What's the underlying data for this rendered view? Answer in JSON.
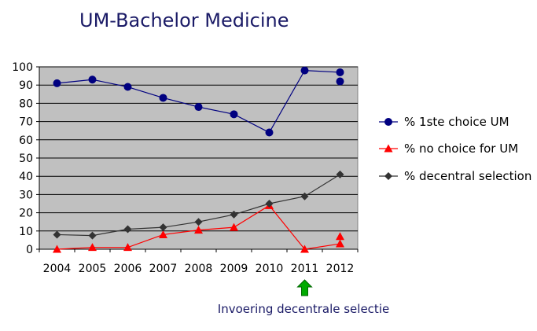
{
  "chart_data": {
    "type": "line",
    "title": "UM-Bachelor Medicine",
    "xlabel": "",
    "ylabel": "",
    "categories": [
      "2004",
      "2005",
      "2006",
      "2007",
      "2008",
      "2009",
      "2010",
      "2011",
      "2012"
    ],
    "ylim": [
      0,
      100
    ],
    "yticks": [
      0,
      10,
      20,
      30,
      40,
      50,
      60,
      70,
      80,
      90,
      100
    ],
    "grid": true,
    "plot_background": "#c0c0c0",
    "legend_position": "right",
    "series": [
      {
        "name": "% 1ste choice UM",
        "color": "#000080",
        "marker": "circle",
        "values": [
          91,
          93,
          89,
          83,
          78,
          74,
          64,
          98,
          97
        ],
        "extra_points": [
          {
            "x": "2012",
            "y": 92
          }
        ]
      },
      {
        "name": "% no choice for UM",
        "color": "#ff0000",
        "marker": "triangle",
        "values": [
          0,
          1,
          1,
          8,
          10.5,
          12,
          24,
          0,
          3
        ],
        "extra_points": [
          {
            "x": "2012",
            "y": 7
          }
        ]
      },
      {
        "name": "% decentral selection",
        "color": "#333333",
        "marker": "diamond",
        "values": [
          8,
          7.5,
          11,
          12,
          15,
          19,
          25,
          29,
          41
        ],
        "extra_points": []
      }
    ],
    "annotation": {
      "text": "Invoering decentrale selectie",
      "at_category": "2011",
      "arrow_color": "#00aa00",
      "arrow_icon": "up-arrow-icon"
    }
  }
}
